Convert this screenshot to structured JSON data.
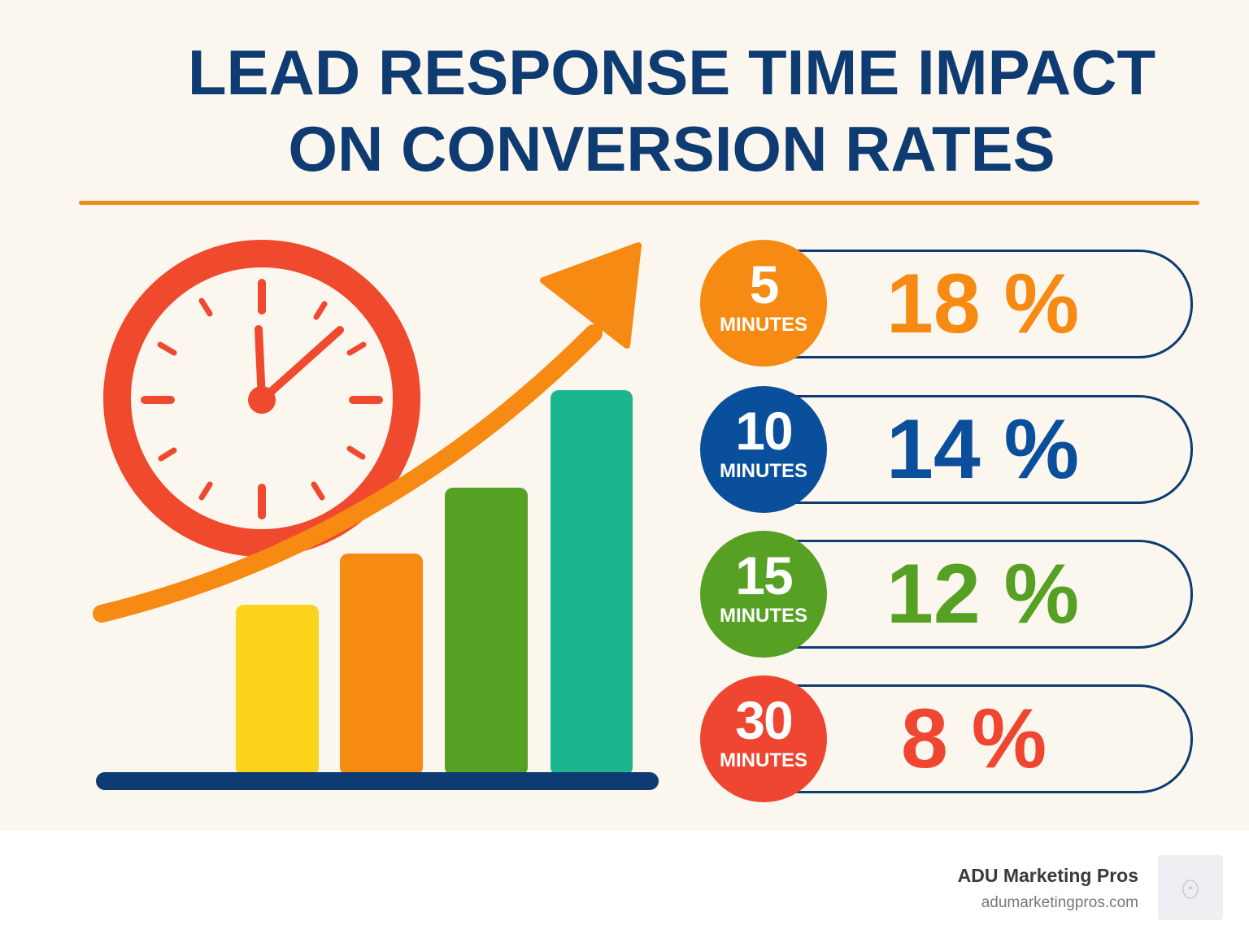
{
  "title": {
    "line1": "LEAD RESPONSE TIME IMPACT",
    "line2": "ON CONVERSION RATES"
  },
  "stats": [
    {
      "number": "5",
      "unit": "MINUTES",
      "percent": "18 %",
      "color": "#f68a12"
    },
    {
      "number": "10",
      "unit": "MINUTES",
      "percent": "14 %",
      "color": "#0a4f9c"
    },
    {
      "number": "15",
      "unit": "MINUTES",
      "percent": "12 %",
      "color": "#56a024"
    },
    {
      "number": "30",
      "unit": "MINUTES",
      "percent": "8 %",
      "color": "#ee4630"
    }
  ],
  "colors": {
    "title": "#0d3b72",
    "accent_rule": "#f08a1c",
    "outline": "#0d3b72",
    "background": "#fbf6ee"
  },
  "illustration": {
    "icons": [
      "clock-icon",
      "trend-arrow-icon",
      "bar-chart-icon"
    ]
  },
  "footer": {
    "brand": "ADU Marketing Pros",
    "url": "adumarketingpros.com",
    "logo": "bear-logo-icon"
  }
}
